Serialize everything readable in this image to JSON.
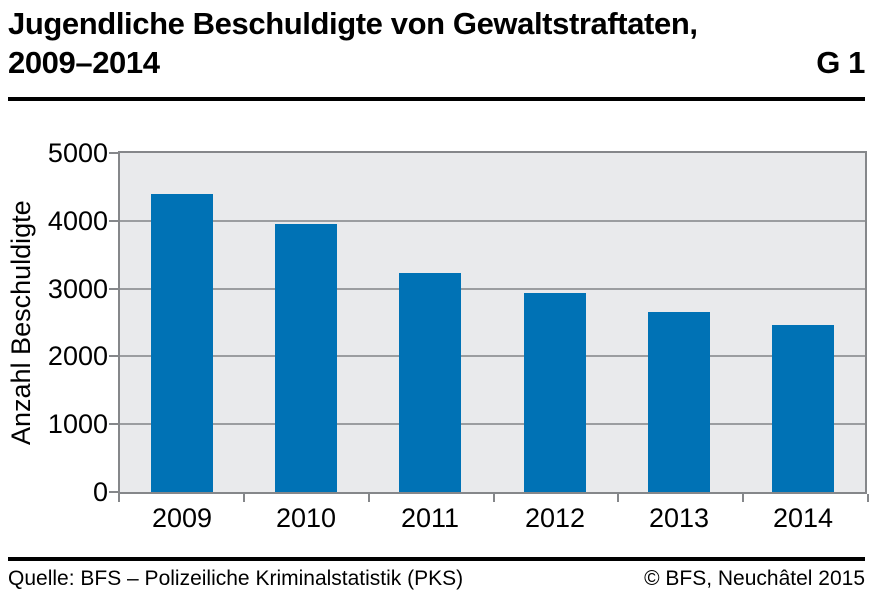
{
  "header": {
    "title_line1": "Jugendliche Beschuldigte von Gewaltstraftaten,",
    "title_line2": "2009–2014",
    "figure_label": "G 1"
  },
  "footer": {
    "source": "Quelle: BFS – Polizeiliche Kriminalstatistik (PKS)",
    "copyright": "© BFS, Neuchâtel 2015"
  },
  "chart_data": {
    "type": "bar",
    "title": "Jugendliche Beschuldigte von Gewaltstraftaten, 2009–2014",
    "categories": [
      "2009",
      "2010",
      "2011",
      "2012",
      "2013",
      "2014"
    ],
    "values": [
      4400,
      3960,
      3230,
      2930,
      2660,
      2470
    ],
    "xlabel": "",
    "ylabel": "Anzahl Beschuldigte",
    "ylim": [
      0,
      5000
    ],
    "yticks": [
      0,
      1000,
      2000,
      3000,
      4000,
      5000
    ],
    "grid": true,
    "legend_position": "none",
    "colors": {
      "bar": "#0072B5",
      "plot_background": "#E9EAEC",
      "gridline": "#9B9DA0",
      "axis": "#85878A",
      "text": "#000000"
    }
  }
}
